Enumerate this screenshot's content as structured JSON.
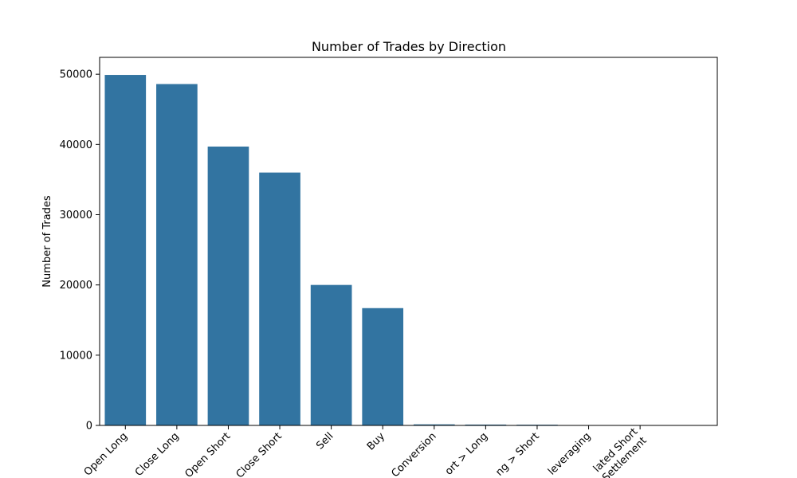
{
  "chart_data": {
    "type": "bar",
    "title": "Number of Trades by Direction",
    "xlabel": "",
    "ylabel": "Number of Trades",
    "categories": [
      "Open Long",
      "Close Long",
      "Open Short",
      "Close Short",
      "Sell",
      "Buy",
      "Spot Dust Conversion",
      "Short > Long",
      "Long > Short",
      "Auto-Deleveraging",
      "Liquidated Short",
      "Settlement"
    ],
    "visible_tick_labels": [
      "Open Long",
      "Close Long",
      "Open Short",
      "Close Short",
      "Sell",
      "Buy",
      "Conversion",
      "ort > Long",
      "ng > Short",
      "leveraging",
      "lated Short\nSettlement"
    ],
    "values": [
      49900,
      48600,
      39700,
      36000,
      20000,
      16700,
      150,
      120,
      100,
      20,
      10,
      5
    ],
    "yticks": [
      0,
      10000,
      20000,
      30000,
      40000,
      50000
    ],
    "ylim": [
      0,
      52400
    ],
    "grid": false,
    "legend": "none",
    "bar_color": "#3274a1"
  }
}
